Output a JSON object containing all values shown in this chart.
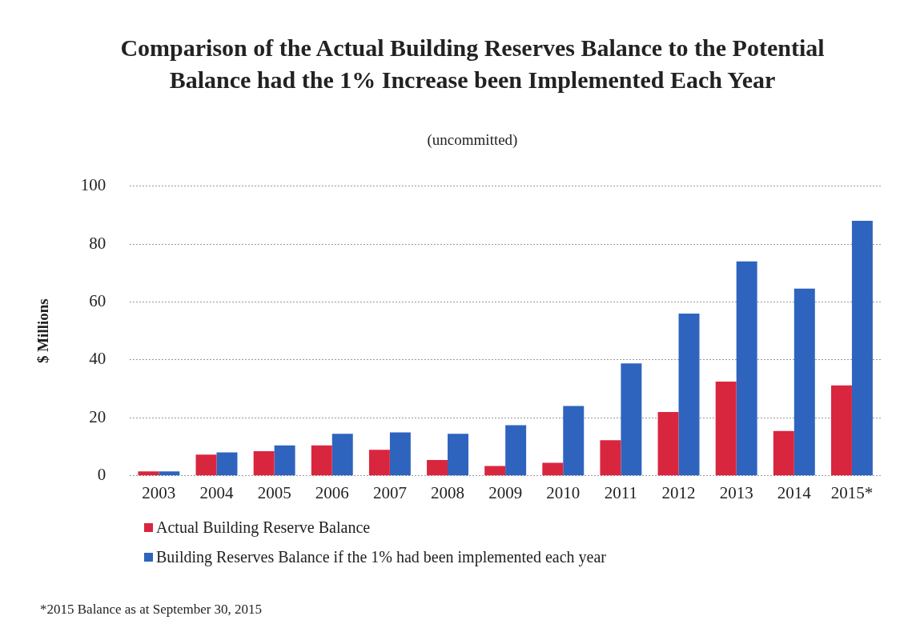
{
  "chart_data": {
    "type": "bar",
    "title": "Comparison of the Actual Building Reserves Balance to the Potential Balance had the 1% Increase been Implemented Each Year",
    "subtitle": "(uncommitted)",
    "ylabel": "$ Millions",
    "categories": [
      "2003",
      "2004",
      "2005",
      "2006",
      "2007",
      "2008",
      "2009",
      "2010",
      "2011",
      "2012",
      "2013",
      "2014",
      "2015*"
    ],
    "series": [
      {
        "name": "Actual Building Reserve Balance",
        "color": "#d9263f",
        "values": [
          1.5,
          7.3,
          8.5,
          10.5,
          9,
          5.5,
          3.4,
          4.5,
          12.3,
          22,
          32.5,
          15.5,
          31.2
        ]
      },
      {
        "name": "Building Reserves Balance if the 1% had been implemented each year",
        "color": "#2e64be",
        "values": [
          1.5,
          8.1,
          10.5,
          14.5,
          15,
          14.5,
          17.5,
          24.1,
          38.8,
          56,
          74,
          64.6,
          88
        ]
      }
    ],
    "ylim": [
      0,
      100
    ],
    "yticks": [
      0,
      20,
      40,
      60,
      80,
      100
    ],
    "grid": "y",
    "legend": "bottom left",
    "annotations": [
      "*2015 Balance as at September 30, 2015"
    ]
  }
}
